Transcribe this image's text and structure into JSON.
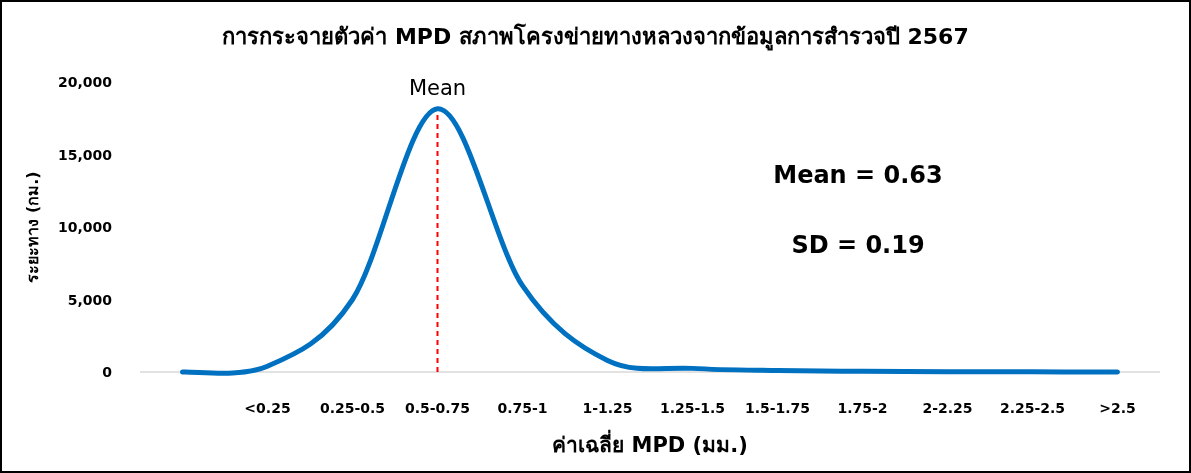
{
  "chart_data": {
    "type": "line",
    "title": "การกระจายตัวค่า MPD สภาพโครงข่ายทางหลวงจากข้อมูลการสำรวจปี 2567",
    "xlabel": "ค่าเฉลี่ย MPD (มม.)",
    "ylabel": "ระยะทาง (กม.)",
    "categories": [
      null,
      "<0.25",
      "0.25-0.5",
      "0.5-0.75",
      "0.75-1",
      "1-1.25",
      "1.25-1.5",
      "1.5-1.75",
      "1.75-2",
      "2-2.25",
      "2.25-2.5",
      ">2.5"
    ],
    "series": [
      {
        "color": "#0070c0",
        "values": [
          0,
          400,
          5000,
          18150,
          5950,
          800,
          250,
          100,
          50,
          20,
          10,
          0
        ]
      }
    ],
    "ylim": [
      0,
      20000
    ],
    "yticks": [
      {
        "value": 0,
        "label": "0"
      },
      {
        "value": 5000,
        "label": "5,000"
      },
      {
        "value": 10000,
        "label": "10,000"
      },
      {
        "value": 15000,
        "label": "15,000"
      },
      {
        "value": 20000,
        "label": "20,000"
      }
    ],
    "ref_lines": [
      {
        "axis": "x",
        "value": "0.5-0.75",
        "label": "Mean",
        "color": "#ff0000",
        "line_style": "dashed"
      }
    ],
    "annotations": [
      "Mean = 0.63",
      "SD = 0.19"
    ],
    "grid": false,
    "marker": "none",
    "line_style": "solid"
  }
}
